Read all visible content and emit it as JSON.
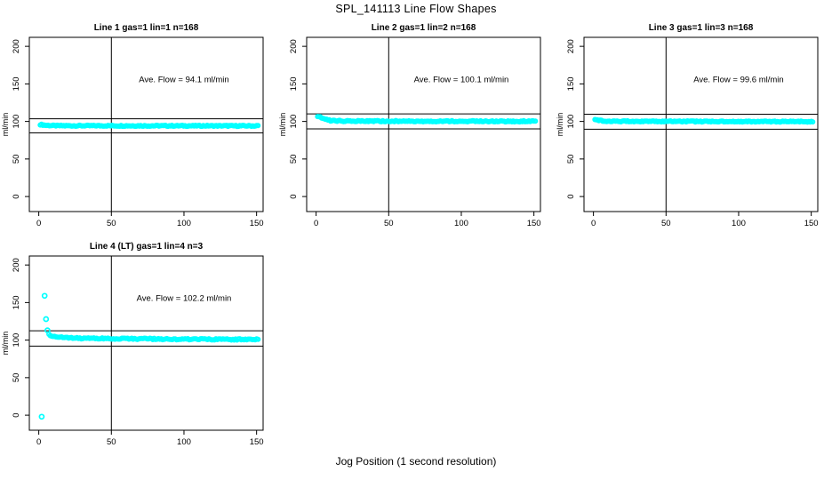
{
  "title": "SPL_141113  Line Flow Shapes",
  "xlabel": "Jog Position (1 second resolution)",
  "colors": {
    "point": "#00ffff",
    "axis": "#000000",
    "background": "#ffffff"
  },
  "chart_data": [
    {
      "type": "scatter",
      "title": "Line 1 gas=1 lin=1 n=168",
      "ylabel": "ml/min",
      "annotation": "Ave. Flow =  94.1  ml/min",
      "ave_flow_ml_min": 94.1,
      "n": 168,
      "xticks": [
        0,
        50,
        100,
        150
      ],
      "yticks": [
        0,
        50,
        100,
        150,
        200
      ],
      "xlim": [
        -6.5,
        154.5
      ],
      "ylim": [
        -20,
        212
      ],
      "vline_x": 50,
      "ref_lines": [
        84.7,
        103.5
      ],
      "x_range": [
        1,
        151
      ],
      "n_points": 168,
      "trend": [
        [
          1,
          96.0
        ],
        [
          5,
          94.8
        ],
        [
          12,
          94.3
        ],
        [
          151,
          94.1
        ]
      ],
      "jitter": 0.7,
      "outliers": [],
      "grid_position": {
        "row": 0,
        "col": 0
      }
    },
    {
      "type": "scatter",
      "title": "Line 2 gas=1 lin=2 n=168",
      "ylabel": "ml/min",
      "annotation": "Ave. Flow =  100.1  ml/min",
      "ave_flow_ml_min": 100.1,
      "n": 168,
      "xticks": [
        0,
        50,
        100,
        150
      ],
      "yticks": [
        0,
        50,
        100,
        150,
        200
      ],
      "xlim": [
        -6.5,
        154.5
      ],
      "ylim": [
        -20,
        212
      ],
      "vline_x": 50,
      "ref_lines": [
        90.1,
        110.1
      ],
      "x_range": [
        1,
        151
      ],
      "n_points": 168,
      "trend": [
        [
          1,
          106.8
        ],
        [
          3,
          105.5
        ],
        [
          6,
          103.0
        ],
        [
          10,
          101.0
        ],
        [
          20,
          100.5
        ],
        [
          151,
          100.2
        ]
      ],
      "jitter": 0.8,
      "outliers": [],
      "grid_position": {
        "row": 0,
        "col": 1
      }
    },
    {
      "type": "scatter",
      "title": "Line 3 gas=1 lin=3 n=168",
      "ylabel": "ml/min",
      "annotation": "Ave. Flow =  99.6  ml/min",
      "ave_flow_ml_min": 99.6,
      "n": 168,
      "xticks": [
        0,
        50,
        100,
        150
      ],
      "yticks": [
        0,
        50,
        100,
        150,
        200
      ],
      "xlim": [
        -6.5,
        154.5
      ],
      "ylim": [
        -20,
        212
      ],
      "vline_x": 50,
      "ref_lines": [
        89.6,
        109.6
      ],
      "x_range": [
        1,
        151
      ],
      "n_points": 168,
      "trend": [
        [
          1,
          102.8
        ],
        [
          4,
          101.5
        ],
        [
          8,
          100.2
        ],
        [
          151,
          99.7
        ]
      ],
      "jitter": 0.7,
      "outliers": [],
      "grid_position": {
        "row": 0,
        "col": 2
      }
    },
    {
      "type": "scatter",
      "title": "Line 4 (LT) gas=1 lin=4 n=3",
      "ylabel": "ml/min",
      "annotation": "Ave. Flow =  102.2  ml/min",
      "ave_flow_ml_min": 102.2,
      "n": 3,
      "xticks": [
        0,
        50,
        100,
        150
      ],
      "yticks": [
        0,
        50,
        100,
        150,
        200
      ],
      "xlim": [
        -6.5,
        154.5
      ],
      "ylim": [
        -20,
        212
      ],
      "vline_x": 50,
      "ref_lines": [
        92.0,
        112.4
      ],
      "x_range": [
        7,
        151
      ],
      "n_points": 150,
      "trend": [
        [
          7,
          107.0
        ],
        [
          10,
          104.8
        ],
        [
          15,
          103.4
        ],
        [
          25,
          102.6
        ],
        [
          50,
          102.0
        ],
        [
          100,
          101.3
        ],
        [
          151,
          100.8
        ]
      ],
      "jitter": 0.9,
      "outliers": [
        [
          2,
          -2
        ],
        [
          4,
          159
        ],
        [
          5,
          128
        ],
        [
          6,
          113
        ]
      ],
      "grid_position": {
        "row": 1,
        "col": 0
      }
    }
  ]
}
